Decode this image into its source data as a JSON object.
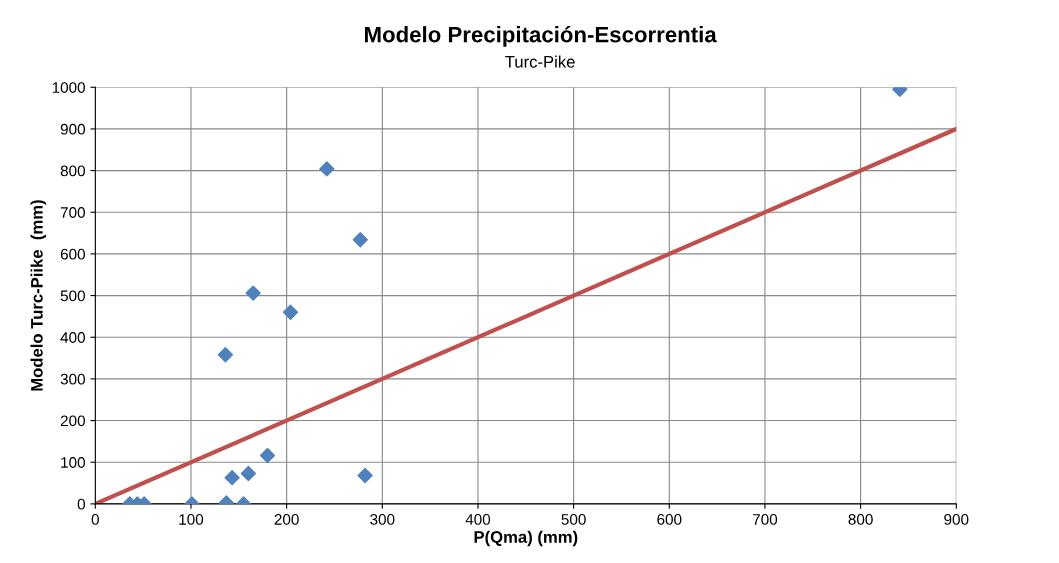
{
  "chart_data": {
    "type": "scatter",
    "title": "Modelo Precipitación-Escorrentia",
    "subtitle": "Turc-Pike",
    "xlabel": "P(Qma) (mm)",
    "ylabel": "Modelo Turc-Piike  (mm)",
    "series": [
      {
        "color": "#4f81bd",
        "marker": "diamond",
        "x": [
          36,
          44,
          51,
          101,
          137,
          155,
          136,
          143,
          160,
          165,
          180,
          204,
          242,
          277,
          282,
          841
        ],
        "values": [
          0,
          0,
          0,
          0,
          2,
          0,
          358,
          63,
          73,
          506,
          116,
          460,
          804,
          634,
          68,
          995
        ]
      },
      {
        "type": "line",
        "color": "#c0504d",
        "marker": "none",
        "line_style": "solid",
        "x": [
          0,
          900
        ],
        "values": [
          0,
          900
        ]
      }
    ],
    "xlim": [
      0,
      900
    ],
    "xticks": [
      0,
      100,
      200,
      300,
      400,
      500,
      600,
      700,
      800,
      900
    ],
    "ylim": [
      0,
      1000
    ],
    "yticks": [
      0,
      100,
      200,
      300,
      400,
      500,
      600,
      700,
      800,
      900,
      1000
    ],
    "grid": true,
    "legend": false
  }
}
